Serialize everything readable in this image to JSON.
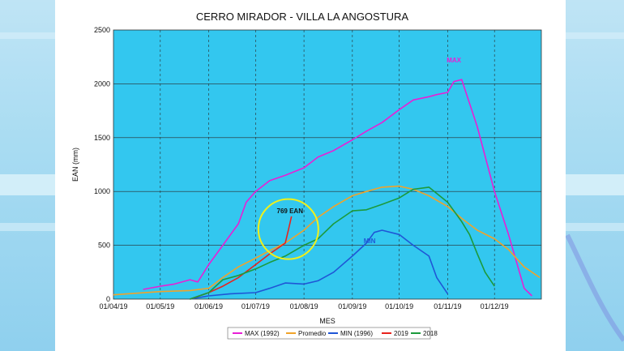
{
  "chart_data": {
    "type": "line",
    "title": "CERRO MIRADOR - VILLA LA ANGOSTURA",
    "xlabel": "MES",
    "ylabel": "EAN (mm)",
    "ylim": [
      0,
      2500
    ],
    "xlim": [
      "2019-04-01",
      "2019-12-31"
    ],
    "y_ticks": [
      0,
      500,
      1000,
      1500,
      2000,
      2500
    ],
    "x_ticks": [
      "01/04/19",
      "01/05/19",
      "01/06/19",
      "01/07/19",
      "01/08/19",
      "01/09/19",
      "01/10/19",
      "01/11/19",
      "01/12/19"
    ],
    "x_tick_dates": [
      "2019-04-01",
      "2019-05-01",
      "2019-06-01",
      "2019-07-01",
      "2019-08-01",
      "2019-09-01",
      "2019-10-01",
      "2019-11-01",
      "2019-12-01"
    ],
    "grid": {
      "horizontal": true,
      "vertical": true,
      "vertical_style": "dashed"
    },
    "background": "#33c7ef",
    "legend_position": "bottom",
    "annotations": [
      {
        "text": "MAX",
        "x": "2019-11-05",
        "y": 2200,
        "color": "#e81fd6"
      },
      {
        "text": "MIN",
        "x": "2019-09-12",
        "y": 520,
        "color": "#1f56d6"
      },
      {
        "text": "769 EAN",
        "x": "2019-07-23",
        "y": 800,
        "color": "#111111"
      }
    ],
    "highlight_circle": {
      "x": "2019-07-22",
      "y": 650,
      "color": "#f0f01a"
    },
    "series": [
      {
        "name": "MAX (1992)",
        "color": "#e81fd6",
        "x": [
          "2019-04-20",
          "2019-05-01",
          "2019-05-10",
          "2019-05-20",
          "2019-05-25",
          "2019-06-01",
          "2019-06-10",
          "2019-06-20",
          "2019-06-25",
          "2019-07-01",
          "2019-07-10",
          "2019-07-20",
          "2019-08-01",
          "2019-08-10",
          "2019-08-20",
          "2019-09-01",
          "2019-09-10",
          "2019-09-20",
          "2019-10-01",
          "2019-10-10",
          "2019-10-20",
          "2019-10-25",
          "2019-11-01",
          "2019-11-05",
          "2019-11-10",
          "2019-11-20",
          "2019-12-01",
          "2019-12-10",
          "2019-12-20",
          "2019-12-25"
        ],
        "values": [
          90,
          120,
          140,
          180,
          160,
          320,
          500,
          700,
          900,
          1000,
          1100,
          1150,
          1220,
          1320,
          1380,
          1480,
          1560,
          1640,
          1760,
          1850,
          1880,
          1900,
          1920,
          2020,
          2040,
          1600,
          1000,
          600,
          100,
          30
        ]
      },
      {
        "name": "Promedio",
        "color": "#f0a32a",
        "x": [
          "2019-04-01",
          "2019-05-01",
          "2019-05-20",
          "2019-06-01",
          "2019-06-10",
          "2019-06-20",
          "2019-07-01",
          "2019-07-10",
          "2019-07-20",
          "2019-08-01",
          "2019-08-10",
          "2019-08-20",
          "2019-09-01",
          "2019-09-10",
          "2019-09-20",
          "2019-10-01",
          "2019-10-10",
          "2019-10-20",
          "2019-11-01",
          "2019-11-10",
          "2019-11-20",
          "2019-12-01",
          "2019-12-10",
          "2019-12-20",
          "2019-12-30"
        ],
        "values": [
          40,
          70,
          80,
          100,
          200,
          300,
          380,
          450,
          520,
          640,
          760,
          860,
          960,
          1000,
          1040,
          1050,
          1020,
          960,
          860,
          750,
          640,
          560,
          460,
          300,
          200
        ]
      },
      {
        "name": "MIN (1996)",
        "color": "#1f56d6",
        "x": [
          "2019-05-20",
          "2019-06-01",
          "2019-06-15",
          "2019-07-01",
          "2019-07-10",
          "2019-07-20",
          "2019-08-01",
          "2019-08-10",
          "2019-08-20",
          "2019-09-01",
          "2019-09-10",
          "2019-09-15",
          "2019-09-20",
          "2019-10-01",
          "2019-10-10",
          "2019-10-20",
          "2019-10-25",
          "2019-11-01"
        ],
        "values": [
          0,
          30,
          50,
          60,
          100,
          150,
          140,
          170,
          250,
          400,
          520,
          620,
          640,
          600,
          500,
          400,
          200,
          50
        ]
      },
      {
        "name": "2019",
        "color": "#e8231d",
        "x": [
          "2019-05-20",
          "2019-06-01",
          "2019-06-10",
          "2019-06-20",
          "2019-07-01",
          "2019-07-10",
          "2019-07-15",
          "2019-07-20",
          "2019-07-22",
          "2019-07-24"
        ],
        "values": [
          0,
          60,
          120,
          200,
          320,
          420,
          470,
          520,
          640,
          769
        ]
      },
      {
        "name": "2018",
        "color": "#1c9a3c",
        "x": [
          "2019-05-20",
          "2019-06-01",
          "2019-06-10",
          "2019-06-20",
          "2019-07-01",
          "2019-07-10",
          "2019-07-20",
          "2019-08-01",
          "2019-08-10",
          "2019-08-20",
          "2019-09-01",
          "2019-09-10",
          "2019-09-20",
          "2019-10-01",
          "2019-10-10",
          "2019-10-20",
          "2019-11-01",
          "2019-11-10",
          "2019-11-15",
          "2019-11-20",
          "2019-11-25",
          "2019-12-01"
        ],
        "values": [
          0,
          60,
          180,
          220,
          280,
          340,
          400,
          500,
          560,
          700,
          820,
          830,
          880,
          940,
          1020,
          1040,
          900,
          720,
          600,
          420,
          250,
          120
        ]
      }
    ]
  }
}
